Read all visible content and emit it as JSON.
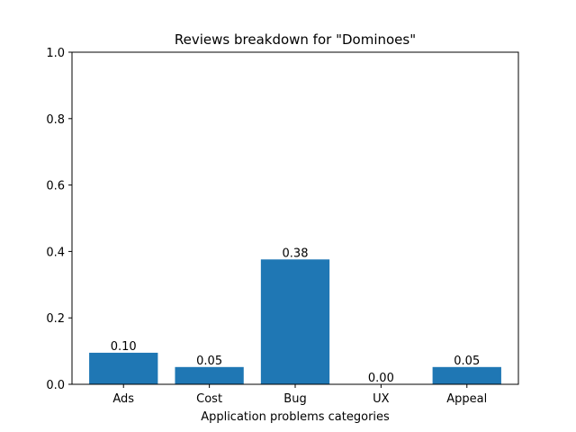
{
  "chart_data": {
    "type": "bar",
    "title": "Reviews breakdown for \"Dominoes\"",
    "xlabel": "Application problems categories",
    "ylabel": "",
    "categories": [
      "Ads",
      "Cost",
      "Bug",
      "UX",
      "Appeal"
    ],
    "values": [
      0.095,
      0.052,
      0.376,
      0.0,
      0.052
    ],
    "value_labels": [
      "0.10",
      "0.05",
      "0.38",
      "0.00",
      "0.05"
    ],
    "ylim": [
      0,
      1.0
    ],
    "yticks": [
      0.0,
      0.2,
      0.4,
      0.6,
      0.8,
      1.0
    ],
    "ytick_labels": [
      "0.0",
      "0.2",
      "0.4",
      "0.6",
      "0.8",
      "1.0"
    ],
    "grid": false,
    "bar_color": "#1f77b4"
  }
}
